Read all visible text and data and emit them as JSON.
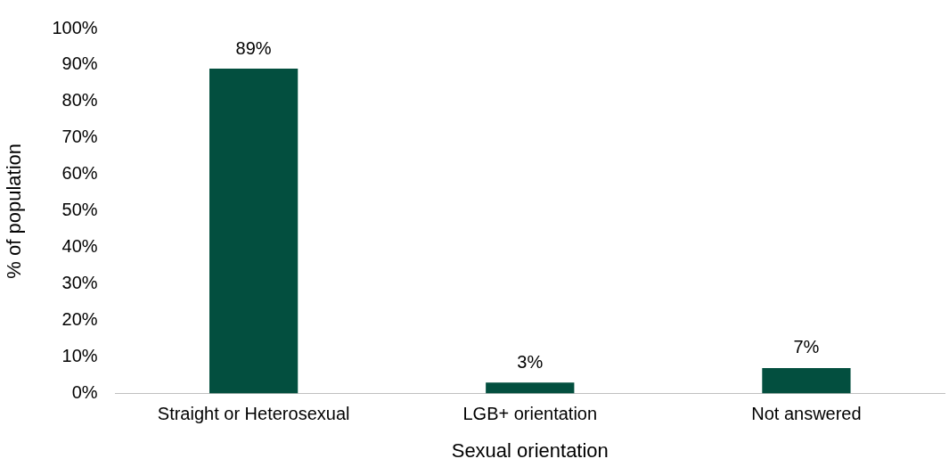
{
  "chart_data": {
    "type": "bar",
    "xlabel": "Sexual orientation",
    "ylabel": "% of population",
    "categories": [
      "Straight or Heterosexual",
      "LGB+ orientation",
      "Not answered"
    ],
    "values": [
      89,
      3,
      7
    ],
    "value_labels": [
      "89%",
      "3%",
      "7%"
    ],
    "color": "#034f3f",
    "ylim": [
      0,
      100
    ],
    "yticks": [
      {
        "value": 0,
        "label": "0%"
      },
      {
        "value": 10,
        "label": "10%"
      },
      {
        "value": 20,
        "label": "20%"
      },
      {
        "value": 30,
        "label": "30%"
      },
      {
        "value": 40,
        "label": "40%"
      },
      {
        "value": 50,
        "label": "50%"
      },
      {
        "value": 60,
        "label": "60%"
      },
      {
        "value": 70,
        "label": "70%"
      },
      {
        "value": 80,
        "label": "80%"
      },
      {
        "value": 90,
        "label": "90%"
      },
      {
        "value": 100,
        "label": "100%"
      }
    ],
    "grid": false,
    "legend": false
  }
}
